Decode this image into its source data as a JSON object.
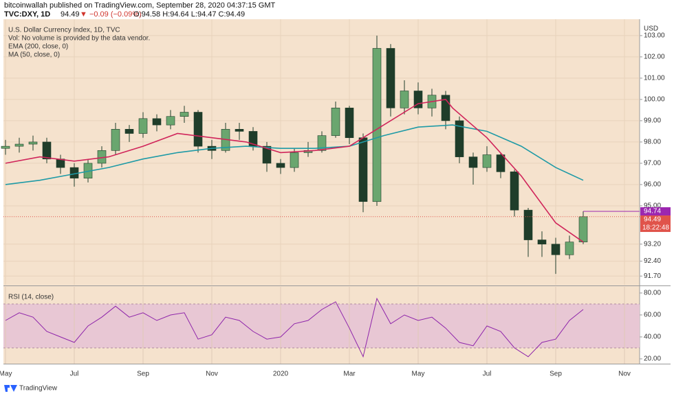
{
  "header": {
    "publisher": "bitcoinwallah published on TradingView.com, September 28, 2020 04:37:15 GMT",
    "symbol": "TVC:DXY, 1D",
    "last": "94.49",
    "change": "▼ −0.09 (−0.09%)",
    "ohlc": "O:94.58 H:94.64 L:94.47 C:94.49"
  },
  "footer": {
    "brand": "TradingView"
  },
  "chart_data": [
    {
      "type": "candlestick",
      "title": "U.S. Dollar Currency Index, 1D, TVC",
      "subtitle": "Vol: No volume is provided by the data vendor.",
      "y_axis_label": "USD",
      "background": "#f5e2cd",
      "up_color": "#6aa66f",
      "down_color": "#1f3d2a",
      "xlim": [
        -0.06,
        18.44
      ],
      "ylim": [
        91.29,
        103.77
      ],
      "xticks": [
        {
          "value": 0,
          "label": "May"
        },
        {
          "value": 2,
          "label": "Jul"
        },
        {
          "value": 4,
          "label": "Sep"
        },
        {
          "value": 6,
          "label": "Nov"
        },
        {
          "value": 8,
          "label": "2020"
        },
        {
          "value": 10,
          "label": "Mar"
        },
        {
          "value": 12,
          "label": "May"
        },
        {
          "value": 14,
          "label": "Jul"
        },
        {
          "value": 16,
          "label": "Sep"
        },
        {
          "value": 18,
          "label": "Nov"
        }
      ],
      "yticks": [
        {
          "value": 103,
          "label": "103.00"
        },
        {
          "value": 102,
          "label": "102.00"
        },
        {
          "value": 101,
          "label": "101.00"
        },
        {
          "value": 100,
          "label": "100.00"
        },
        {
          "value": 99,
          "label": "99.00"
        },
        {
          "value": 98,
          "label": "98.00"
        },
        {
          "value": 97,
          "label": "97.00"
        },
        {
          "value": 96,
          "label": "96.00"
        },
        {
          "value": 95,
          "label": "95.00"
        },
        {
          "value": 93.2,
          "label": "93.20"
        },
        {
          "value": 92.4,
          "label": "92.40"
        },
        {
          "value": 91.7,
          "label": "91.70"
        }
      ],
      "candles": {
        "x": [
          0,
          0.4,
          0.8,
          1.2,
          1.6,
          2.0,
          2.4,
          2.8,
          3.2,
          3.6,
          4.0,
          4.4,
          4.8,
          5.2,
          5.6,
          6.0,
          6.4,
          6.8,
          7.2,
          7.6,
          8.0,
          8.4,
          8.8,
          9.2,
          9.6,
          10.0,
          10.4,
          10.8,
          11.2,
          11.6,
          12.0,
          12.4,
          12.8,
          13.2,
          13.6,
          14.0,
          14.4,
          14.8,
          15.2,
          15.6,
          16.0,
          16.4,
          16.8
        ],
        "open": [
          97.7,
          97.8,
          97.9,
          98.0,
          97.2,
          96.8,
          96.3,
          97.0,
          97.6,
          98.6,
          98.4,
          99.1,
          98.8,
          99.2,
          99.4,
          97.8,
          97.6,
          98.6,
          98.5,
          97.8,
          97.0,
          96.8,
          97.5,
          97.6,
          98.3,
          99.6,
          98.2,
          95.2,
          102.4,
          99.6,
          100.4,
          99.6,
          100.2,
          99.0,
          97.3,
          96.8,
          97.4,
          96.6,
          94.8,
          93.4,
          93.2,
          92.7,
          93.3
        ],
        "high": [
          98.1,
          98.2,
          98.3,
          98.2,
          97.4,
          97.0,
          97.2,
          97.8,
          98.9,
          98.8,
          99.4,
          99.3,
          99.5,
          99.7,
          99.5,
          98.1,
          98.9,
          98.9,
          98.7,
          98.0,
          97.2,
          97.7,
          98.0,
          98.5,
          99.9,
          99.7,
          98.4,
          103.0,
          102.6,
          100.9,
          100.8,
          100.5,
          100.4,
          99.2,
          97.5,
          97.8,
          97.5,
          96.7,
          94.9,
          93.8,
          93.5,
          93.6,
          94.74
        ],
        "low": [
          97.4,
          97.5,
          97.6,
          97.0,
          96.5,
          95.9,
          96.1,
          96.8,
          97.4,
          98.0,
          98.2,
          98.5,
          98.6,
          98.9,
          97.5,
          97.2,
          97.5,
          98.1,
          97.6,
          96.6,
          96.5,
          96.6,
          97.3,
          97.5,
          98.2,
          97.9,
          94.7,
          95.0,
          99.2,
          99.3,
          99.3,
          99.2,
          98.6,
          97.0,
          96.0,
          96.6,
          96.3,
          94.5,
          92.6,
          92.6,
          91.8,
          92.5,
          93.2
        ],
        "close": [
          97.8,
          97.9,
          98.0,
          97.2,
          96.8,
          96.3,
          97.0,
          97.6,
          98.6,
          98.4,
          99.1,
          98.8,
          99.2,
          99.4,
          97.8,
          97.6,
          98.6,
          98.5,
          97.8,
          97.0,
          96.8,
          97.5,
          97.6,
          98.3,
          99.6,
          98.2,
          95.2,
          102.4,
          99.6,
          100.4,
          99.6,
          100.2,
          99.0,
          97.3,
          96.8,
          97.4,
          96.6,
          94.8,
          93.4,
          93.2,
          92.7,
          93.3,
          94.49
        ]
      },
      "series": [
        {
          "name": "EMA (200, close, 0)",
          "color": "#1e9aa6",
          "x": [
            0,
            1,
            2,
            3,
            4,
            5,
            6,
            7,
            8,
            9,
            10,
            11,
            12,
            13,
            14,
            15,
            16,
            16.8
          ],
          "values": [
            96.0,
            96.2,
            96.5,
            96.8,
            97.2,
            97.5,
            97.7,
            97.8,
            97.7,
            97.7,
            97.8,
            98.3,
            98.7,
            98.8,
            98.5,
            97.8,
            96.8,
            96.2
          ]
        },
        {
          "name": "MA (50, close, 0)",
          "color": "#d0245a",
          "x": [
            0,
            1,
            2,
            3,
            4,
            5,
            6,
            7,
            8,
            9,
            10,
            11,
            12,
            12.8,
            13,
            14,
            15,
            16,
            16.8
          ],
          "values": [
            97.0,
            97.3,
            97.1,
            97.3,
            97.8,
            98.4,
            98.2,
            98.0,
            97.5,
            97.6,
            97.8,
            98.8,
            99.8,
            100.0,
            99.6,
            98.2,
            96.4,
            94.2,
            93.3
          ]
        }
      ],
      "price_lines": [
        {
          "value": 94.74,
          "label": "94.74",
          "color": "#9c27b0"
        },
        {
          "value": 94.49,
          "label": "94.49",
          "color": "#e0534a"
        }
      ],
      "countdown": "18:22:48"
    },
    {
      "type": "line",
      "title": "RSI (14, close)",
      "band": [
        30,
        70
      ],
      "band_color": "#e8c7d4",
      "xlim": [
        -0.06,
        18.44
      ],
      "ylim": [
        15.6,
        85.6
      ],
      "xticks": [
        {
          "value": 0,
          "label": "May"
        },
        {
          "value": 2,
          "label": "Jul"
        },
        {
          "value": 4,
          "label": "Sep"
        },
        {
          "value": 6,
          "label": "Nov"
        },
        {
          "value": 8,
          "label": "2020"
        },
        {
          "value": 10,
          "label": "Mar"
        },
        {
          "value": 12,
          "label": "May"
        },
        {
          "value": 14,
          "label": "Jul"
        },
        {
          "value": 16,
          "label": "Sep"
        },
        {
          "value": 18,
          "label": "Nov"
        }
      ],
      "yticks": [
        {
          "value": 80,
          "label": "80.00"
        },
        {
          "value": 60,
          "label": "60.00"
        },
        {
          "value": 40,
          "label": "40.00"
        },
        {
          "value": 20,
          "label": "20.00"
        }
      ],
      "series": [
        {
          "color": "#8e24aa",
          "x": [
            0,
            0.4,
            0.8,
            1.2,
            1.6,
            2.0,
            2.4,
            2.8,
            3.2,
            3.6,
            4.0,
            4.4,
            4.8,
            5.2,
            5.6,
            6.0,
            6.4,
            6.8,
            7.2,
            7.6,
            8.0,
            8.4,
            8.8,
            9.2,
            9.6,
            10.0,
            10.4,
            10.8,
            11.2,
            11.6,
            12.0,
            12.4,
            12.8,
            13.2,
            13.6,
            14.0,
            14.4,
            14.8,
            15.2,
            15.6,
            16.0,
            16.4,
            16.8
          ],
          "values": [
            55,
            62,
            58,
            45,
            40,
            35,
            50,
            58,
            68,
            58,
            62,
            55,
            60,
            62,
            38,
            42,
            58,
            55,
            45,
            38,
            40,
            52,
            55,
            65,
            72,
            48,
            22,
            75,
            52,
            60,
            55,
            58,
            48,
            35,
            32,
            50,
            45,
            30,
            22,
            35,
            38,
            55,
            65
          ]
        }
      ]
    }
  ]
}
